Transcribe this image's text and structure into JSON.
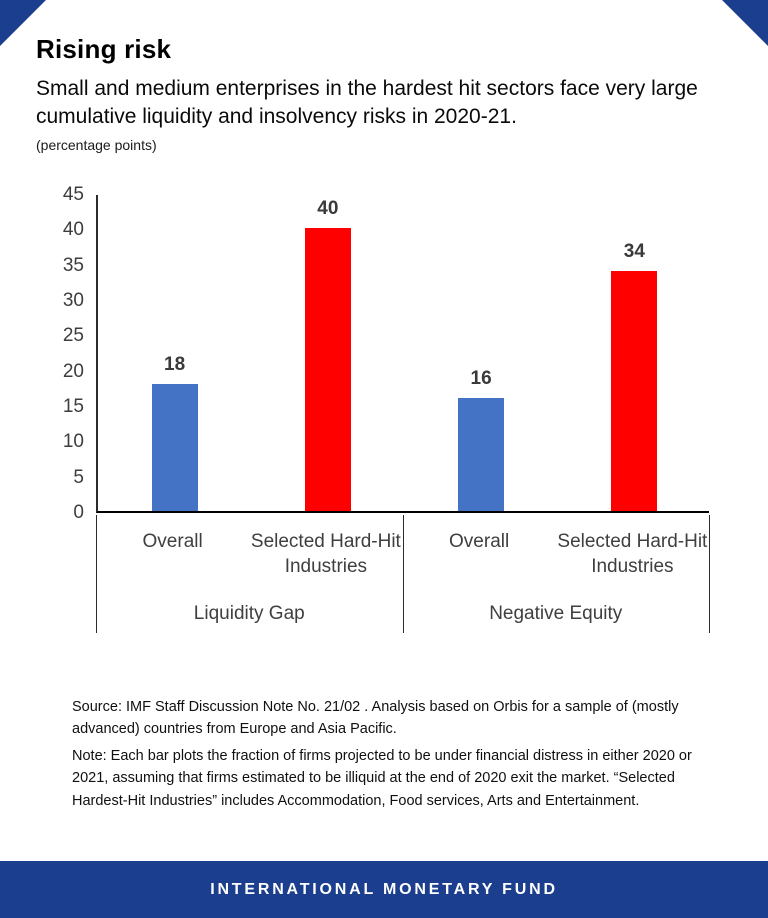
{
  "header": {
    "title": "Rising risk",
    "subtitle": "Small and medium enterprises in the hardest hit sectors face very large cumulative liquidity and insolvency risks in 2020-21.",
    "units_label": "(percentage points)"
  },
  "notes": {
    "source_text": "Source: IMF Staff Discussion Note No. 21/02 . Analysis based on Orbis for a sample of (mostly advanced) countries from Europe and Asia Pacific.",
    "note_text": "Note: Each bar plots the fraction of firms projected to be under financial distress in either 2020 or 2021, assuming that firms estimated to be illiquid at the end of 2020 exit the market. “Selected Hardest-Hit Industries” includes Accommodation, Food services, Arts and Entertainment."
  },
  "footer": {
    "label": "INTERNATIONAL MONETARY FUND"
  },
  "colors": {
    "brand_navy": "#1b3e8e",
    "bar_blue": "#4472c4",
    "bar_red": "#ff0000",
    "axis_text": "#3d3d3d"
  },
  "chart_data": {
    "type": "bar",
    "title": "Rising risk",
    "ylabel": "(percentage points)",
    "categories": [
      "Overall",
      "Selected Hard-Hit Industries",
      "Overall",
      "Selected Hard-Hit Industries"
    ],
    "group_labels": [
      "Liquidity Gap",
      "Negative Equity"
    ],
    "values": [
      18,
      40,
      16,
      34
    ],
    "bar_colors": [
      "#4472c4",
      "#ff0000",
      "#4472c4",
      "#ff0000"
    ],
    "series": [
      {
        "name": "Overall",
        "values": [
          18,
          16
        ]
      },
      {
        "name": "Selected Hard-Hit Industries",
        "values": [
          40,
          34
        ]
      }
    ],
    "ylim": [
      0,
      45
    ],
    "ytick_step": 5,
    "grid": false,
    "legend": "none"
  }
}
